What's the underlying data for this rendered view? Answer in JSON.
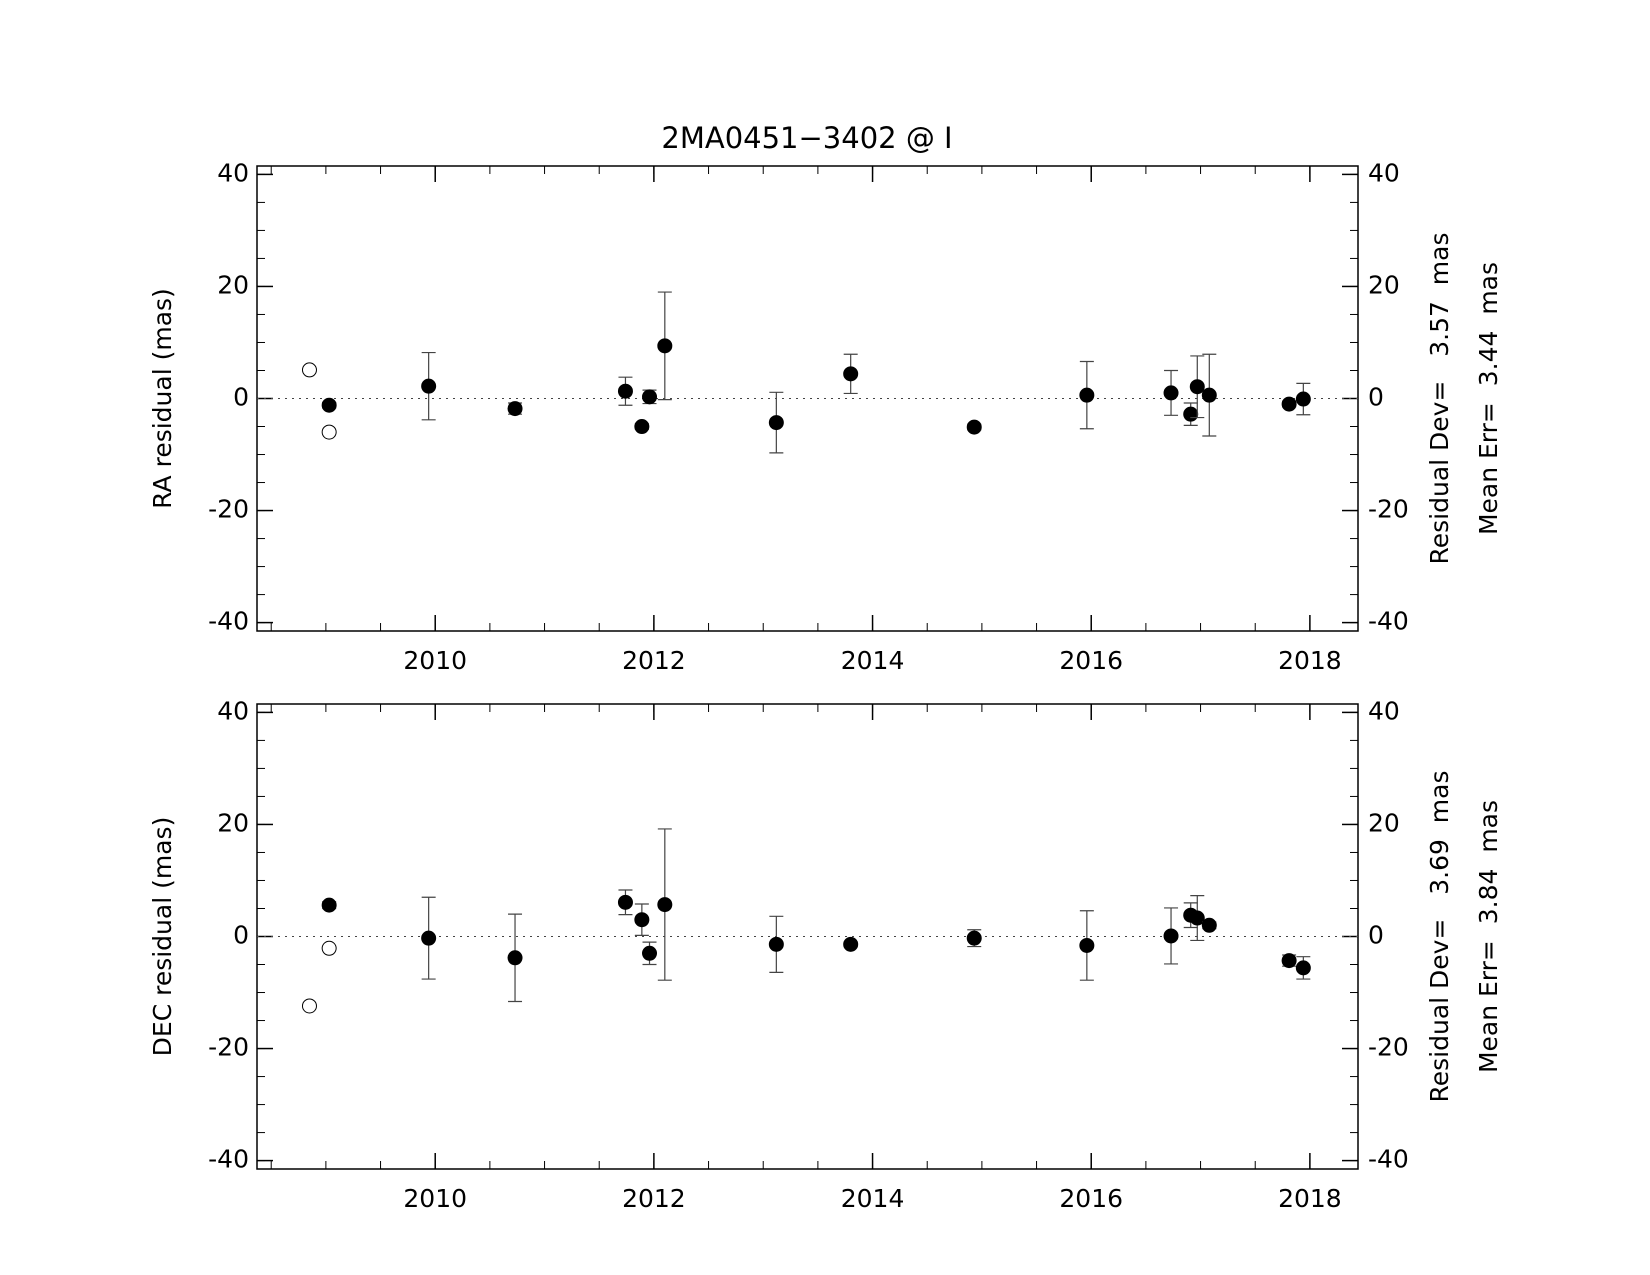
{
  "chart_data": [
    {
      "type": "scatter",
      "title": "2MA0451−3402 @ I",
      "ylabel": "RA residual (mas)",
      "annotations": [
        "Residual Dev=   3.57  mas",
        "Mean Err=  3.44  mas"
      ],
      "xlim": [
        2008.37,
        2018.44
      ],
      "xticks": [
        2010,
        2012,
        2014,
        2016,
        2018
      ],
      "x_minor_step": 0.5,
      "ylim": [
        -41.5,
        41.5
      ],
      "yticks": [
        -40,
        -20,
        0,
        20,
        40
      ],
      "y_minor_step": 5,
      "zero_line": true,
      "series": [
        {
          "marker": "filled",
          "color": "#000000",
          "x": [
            2009.03,
            2009.94,
            2010.73,
            2011.74,
            2011.89,
            2011.96,
            2012.1,
            2013.12,
            2013.8,
            2014.93,
            2015.96,
            2016.73,
            2016.91,
            2016.97,
            2017.08,
            2017.81,
            2017.94
          ],
          "values": [
            -1.2,
            2.2,
            -1.8,
            1.3,
            -5.0,
            0.3,
            9.4,
            -4.3,
            4.4,
            -5.1,
            0.6,
            1.0,
            -2.8,
            2.1,
            0.6,
            -1.0,
            -0.1
          ],
          "errors": [
            0.5,
            6.0,
            1.0,
            2.5,
            0.5,
            1.2,
            9.6,
            5.4,
            3.5,
            0.5,
            6.0,
            4.0,
            2.0,
            5.5,
            7.3,
            0.5,
            2.8
          ]
        },
        {
          "marker": "open",
          "color": "#000000",
          "x": [
            2008.85,
            2009.03
          ],
          "values": [
            5.1,
            -6.0
          ]
        }
      ]
    },
    {
      "type": "scatter",
      "ylabel": "DEC residual (mas)",
      "annotations": [
        "Residual Dev=   3.69  mas",
        "Mean Err=  3.84  mas"
      ],
      "xlim": [
        2008.37,
        2018.44
      ],
      "xticks": [
        2010,
        2012,
        2014,
        2016,
        2018
      ],
      "x_minor_step": 0.5,
      "ylim": [
        -41.5,
        41.5
      ],
      "yticks": [
        -40,
        -20,
        0,
        20,
        40
      ],
      "y_minor_step": 5,
      "zero_line": true,
      "series": [
        {
          "marker": "filled",
          "color": "#000000",
          "x": [
            2009.03,
            2009.94,
            2010.73,
            2011.74,
            2011.89,
            2011.96,
            2012.1,
            2013.12,
            2013.8,
            2014.93,
            2015.96,
            2016.73,
            2016.91,
            2016.97,
            2017.08,
            2017.81,
            2017.94
          ],
          "values": [
            5.6,
            -0.3,
            -3.8,
            6.1,
            3.0,
            -3.0,
            5.7,
            -1.4,
            -1.4,
            -0.3,
            -1.6,
            0.1,
            3.8,
            3.3,
            2.0,
            -4.3,
            -5.6
          ],
          "errors": [
            0.6,
            7.3,
            7.8,
            2.2,
            2.8,
            2.0,
            13.5,
            5.0,
            0.4,
            1.5,
            6.2,
            5.0,
            2.2,
            4.0,
            0.6,
            1.0,
            2.0
          ]
        },
        {
          "marker": "open",
          "color": "#000000",
          "x": [
            2008.85,
            2009.03
          ],
          "values": [
            -12.4,
            -2.1
          ]
        }
      ]
    }
  ]
}
